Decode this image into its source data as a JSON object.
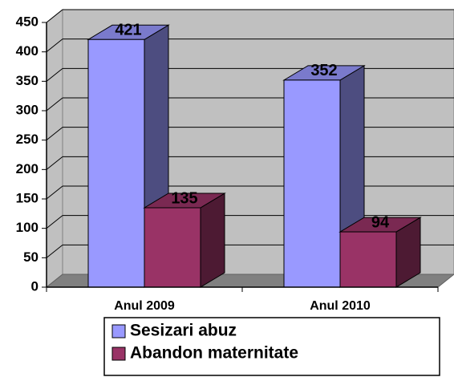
{
  "chart_data": {
    "type": "bar3d",
    "categories": [
      "Anul 2009",
      "Anul 2010"
    ],
    "series": [
      {
        "name": "Sesizari abuz",
        "color": "#9999ff",
        "values": [
          421,
          352
        ]
      },
      {
        "name": "Abandon maternitate",
        "color": "#993366",
        "values": [
          135,
          94
        ]
      }
    ],
    "ylim": [
      0,
      450
    ],
    "yticks": [
      0,
      50,
      100,
      150,
      200,
      250,
      300,
      350,
      400,
      450
    ],
    "grid": true,
    "legend": "bottom"
  }
}
